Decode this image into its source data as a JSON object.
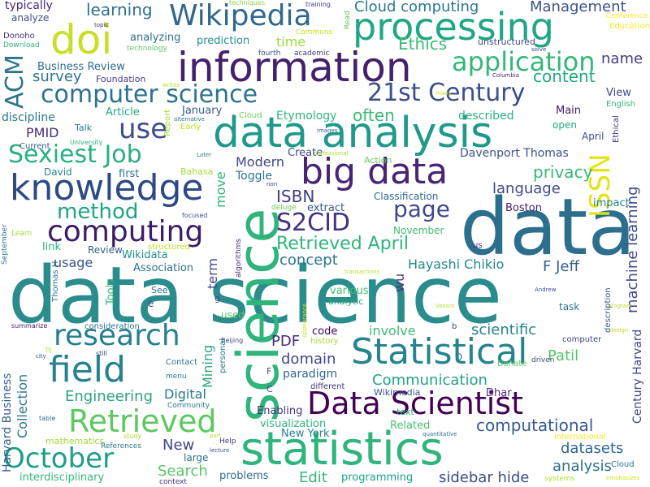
{
  "words": [
    {
      "text": "data science",
      "color": "#2a8c8c",
      "rot": false
    },
    {
      "text": "data",
      "color": "#2c6f8d",
      "rot": false
    },
    {
      "text": "information",
      "color": "#45206b",
      "rot": false
    },
    {
      "text": "data analysis",
      "color": "#1f9a8a",
      "rot": false
    },
    {
      "text": "statistics",
      "color": "#2fb47c",
      "rot": false
    },
    {
      "text": "science",
      "color": "#2fb47c",
      "rot": true
    },
    {
      "text": "processing",
      "color": "#21a685",
      "rot": false
    },
    {
      "text": "big data",
      "color": "#482475",
      "rot": false
    },
    {
      "text": "knowledge",
      "color": "#2e4a85",
      "rot": false
    },
    {
      "text": "Statistical",
      "color": "#25848e",
      "rot": false
    },
    {
      "text": "Data Scientist",
      "color": "#440154",
      "rot": false
    },
    {
      "text": "Wikipedia",
      "color": "#31688e",
      "rot": false
    },
    {
      "text": "computer science",
      "color": "#2c728e",
      "rot": false
    },
    {
      "text": "doi",
      "color": "#c9de26",
      "rot": false
    },
    {
      "text": "research",
      "color": "#27808e",
      "rot": false
    },
    {
      "text": "field",
      "color": "#26828e",
      "rot": false
    },
    {
      "text": "Retrieved",
      "color": "#5ec962",
      "rot": false
    },
    {
      "text": "computing",
      "color": "#3b1c66",
      "rot": false
    },
    {
      "text": "21st Century",
      "color": "#3b4f8a",
      "rot": false
    },
    {
      "text": "application",
      "color": "#35b779",
      "rot": false
    },
    {
      "text": "use",
      "color": "#3e4c8a",
      "rot": false
    },
    {
      "text": "ACM",
      "color": "#2b758e",
      "rot": true
    },
    {
      "text": "Sexiest Job",
      "color": "#2ab07f",
      "rot": false
    },
    {
      "text": "method",
      "color": "#20a486",
      "rot": false
    },
    {
      "text": "October",
      "color": "#1f9e89",
      "rot": false
    },
    {
      "text": "ISSN",
      "color": "#e3e418",
      "rot": true
    },
    {
      "text": "S2CID",
      "color": "#46327e",
      "rot": false
    },
    {
      "text": "page",
      "color": "#3e4989",
      "rot": false
    },
    {
      "text": "Retrieved April",
      "color": "#31b57b",
      "rot": false
    },
    {
      "text": "learning",
      "color": "#2d708e",
      "rot": false
    },
    {
      "text": "Cloud computing",
      "color": "#29798e",
      "rot": false
    },
    {
      "text": "Management",
      "color": "#3b528b",
      "rot": false
    },
    {
      "text": "Ethics",
      "color": "#3bbb75",
      "rot": false
    },
    {
      "text": "content",
      "color": "#22a884",
      "rot": false
    },
    {
      "text": "name",
      "color": "#423f85",
      "rot": false
    },
    {
      "text": "often",
      "color": "#3aba76",
      "rot": false
    },
    {
      "text": "survey",
      "color": "#2a768e",
      "rot": false
    },
    {
      "text": "Business Review",
      "color": "#2f6c8e",
      "rot": false
    },
    {
      "text": "PMID",
      "color": "#472d7b",
      "rot": false
    },
    {
      "text": "ISBN",
      "color": "#433e85",
      "rot": false
    },
    {
      "text": "privacy",
      "color": "#37b878",
      "rot": false
    },
    {
      "text": "language",
      "color": "#3f4889",
      "rot": false
    },
    {
      "text": "Davenport Thomas",
      "color": "#3b528b",
      "rot": false
    },
    {
      "text": "Modern",
      "color": "#404688",
      "rot": false
    },
    {
      "text": "concept",
      "color": "#2c738e",
      "rot": false
    },
    {
      "text": "Hayashi Chikio",
      "color": "#23898e",
      "rot": false
    },
    {
      "text": "F Jeff",
      "color": "#365d8d",
      "rot": false
    },
    {
      "text": "machine learning",
      "color": "#3e4a89",
      "rot": true
    },
    {
      "text": "domain",
      "color": "#3f4788",
      "rot": false
    },
    {
      "text": "PDF",
      "color": "#472c7a",
      "rot": false
    },
    {
      "text": "scientific",
      "color": "#26828e",
      "rot": false
    },
    {
      "text": "involve",
      "color": "#3dbc74",
      "rot": false
    },
    {
      "text": "code",
      "color": "#440154",
      "rot": false
    },
    {
      "text": "paradigm",
      "color": "#31688e",
      "rot": false
    },
    {
      "text": "Communication",
      "color": "#20a386",
      "rot": false
    },
    {
      "text": "Patil",
      "color": "#52c569",
      "rot": false
    },
    {
      "text": "computational",
      "color": "#375a8c",
      "rot": false
    },
    {
      "text": "datasets",
      "color": "#31678e",
      "rot": false
    },
    {
      "text": "analysis",
      "color": "#2e6e8e",
      "rot": false
    },
    {
      "text": "sidebar hide",
      "color": "#3d4e8a",
      "rot": false
    },
    {
      "text": "Engineering",
      "color": "#2da37f",
      "rot": false
    },
    {
      "text": "Digital",
      "color": "#287c8e",
      "rot": false
    },
    {
      "text": "Search",
      "color": "#56c667",
      "rot": false
    },
    {
      "text": "New",
      "color": "#404588",
      "rot": false
    },
    {
      "text": "Edit",
      "color": "#34b679",
      "rot": false
    },
    {
      "text": "programming",
      "color": "#1fa088",
      "rot": false
    },
    {
      "text": "problems",
      "color": "#2e6d8e",
      "rot": false
    },
    {
      "text": "interdisciplinary",
      "color": "#35b779",
      "rot": false
    },
    {
      "text": "New York",
      "color": "#26828e",
      "rot": false
    },
    {
      "text": "visualization",
      "color": "#2fb47c",
      "rot": false
    },
    {
      "text": "Related",
      "color": "#4ac16d",
      "rot": false
    },
    {
      "text": "Enabling",
      "color": "#46337e",
      "rot": false
    },
    {
      "text": "Dhar",
      "color": "#46307e",
      "rot": false
    },
    {
      "text": "Wikimedia",
      "color": "#3b528b",
      "rot": false
    },
    {
      "text": "Collection",
      "color": "#2c728e",
      "rot": true
    },
    {
      "text": "Harvard Business",
      "color": "#35608d",
      "rot": true
    },
    {
      "text": "term",
      "color": "#3e4989",
      "rot": true
    },
    {
      "text": "Mining",
      "color": "#2da47f",
      "rot": true
    },
    {
      "text": "move",
      "color": "#2fb47c",
      "rot": true
    },
    {
      "text": "wu",
      "color": "#44397f",
      "rot": true
    },
    {
      "text": "Century Harvard",
      "color": "#414487",
      "rot": true
    },
    {
      "text": "Boston",
      "color": "#481b6d",
      "rot": false
    },
    {
      "text": "impact",
      "color": "#26828e",
      "rot": false
    },
    {
      "text": "November",
      "color": "#40bd72",
      "rot": false
    },
    {
      "text": "Classification",
      "color": "#2f6b8e",
      "rot": false
    },
    {
      "text": "Toggle",
      "color": "#2a778e",
      "rot": false
    },
    {
      "text": "Create",
      "color": "#3e4a89",
      "rot": false
    },
    {
      "text": "extract",
      "color": "#38598c",
      "rot": false
    },
    {
      "text": "usage",
      "color": "#3a548c",
      "rot": false
    },
    {
      "text": "Wikidata",
      "color": "#21918c",
      "rot": false
    },
    {
      "text": "Association",
      "color": "#2c728e",
      "rot": false
    },
    {
      "text": "Review",
      "color": "#35608d",
      "rot": false
    },
    {
      "text": "link",
      "color": "#29af7f",
      "rot": false
    },
    {
      "text": "Learn",
      "color": "#a2da37",
      "rot": false
    },
    {
      "text": "first",
      "color": "#2a778e",
      "rot": false
    },
    {
      "text": "David",
      "color": "#25858e",
      "rot": false
    },
    {
      "text": "Current",
      "color": "#365d8d",
      "rot": false
    },
    {
      "text": "discipline",
      "color": "#2a778e",
      "rot": false
    },
    {
      "text": "Talk",
      "color": "#2a778e",
      "rot": false
    },
    {
      "text": "Article",
      "color": "#22a884",
      "rot": false
    },
    {
      "text": "January",
      "color": "#38588c",
      "rot": false
    },
    {
      "text": "Etymology",
      "color": "#32b67a",
      "rot": false
    },
    {
      "text": "described",
      "color": "#2ab07f",
      "rot": false
    },
    {
      "text": "time",
      "color": "#a0da39",
      "rot": false
    },
    {
      "text": "Main",
      "color": "#3b1c66",
      "rot": false
    },
    {
      "text": "View",
      "color": "#3e4a89",
      "rot": false
    },
    {
      "text": "open",
      "color": "#22a884",
      "rot": false
    },
    {
      "text": "April",
      "color": "#3f4889",
      "rot": false
    },
    {
      "text": "English",
      "color": "#37b878",
      "rot": false
    },
    {
      "text": "Conference",
      "color": "#fde725",
      "rot": false
    },
    {
      "text": "Education",
      "color": "#fde725",
      "rot": false
    },
    {
      "text": "analyzing",
      "color": "#2d718e",
      "rot": false
    },
    {
      "text": "prediction",
      "color": "#21918c",
      "rot": false
    },
    {
      "text": "Foundation",
      "color": "#433e85",
      "rot": false
    },
    {
      "text": "typically",
      "color": "#482878",
      "rot": false
    },
    {
      "text": "analyze",
      "color": "#3b518b",
      "rot": false
    },
    {
      "text": "Donoho",
      "color": "#46327e",
      "rot": false
    },
    {
      "text": "Download",
      "color": "#32b67a",
      "rot": false
    },
    {
      "text": "academic",
      "color": "#44397f",
      "rot": false
    },
    {
      "text": "fourth",
      "color": "#3a548c",
      "rot": false
    },
    {
      "text": "Commons",
      "color": "#c8e020",
      "rot": false
    },
    {
      "text": "unstructured",
      "color": "#3e4a89",
      "rot": false
    },
    {
      "text": "technology",
      "color": "#5ec962",
      "rot": false
    },
    {
      "text": "topic",
      "color": "#46327e",
      "rot": false
    },
    {
      "text": "techniques",
      "color": "#8bd646",
      "rot": false
    },
    {
      "text": "training",
      "color": "#453882",
      "rot": false
    },
    {
      "text": "Columbia",
      "color": "#482173",
      "rot": false
    },
    {
      "text": "solve",
      "color": "#3f4889",
      "rot": false
    },
    {
      "text": "Read",
      "color": "#5ec962",
      "rot": true
    },
    {
      "text": "alternative",
      "color": "#2c728e",
      "rot": false
    },
    {
      "text": "Cloud",
      "color": "#6ece58",
      "rot": false
    },
    {
      "text": "images",
      "color": "#355f8d",
      "rot": false
    },
    {
      "text": "professional",
      "color": "#b5de2b",
      "rot": false
    },
    {
      "text": "Action",
      "color": "#6ece58",
      "rot": false
    },
    {
      "text": "Bahasa",
      "color": "#a5db36",
      "rot": false
    },
    {
      "text": "Later",
      "color": "#2a788e",
      "rot": false
    },
    {
      "text": "Early",
      "color": "#c8e020",
      "rot": false
    },
    {
      "text": "writes",
      "color": "#c8e020",
      "rot": false
    },
    {
      "text": "University",
      "color": "#2ab07f",
      "rot": false
    },
    {
      "text": "Report",
      "color": "#a8db34",
      "rot": true
    },
    {
      "text": "many",
      "color": "#d5e21a",
      "rot": false
    },
    {
      "text": "Ethical",
      "color": "#46337e",
      "rot": true
    },
    {
      "text": "non",
      "color": "#3e4a89",
      "rot": false
    },
    {
      "text": "deluge",
      "color": "#6ece58",
      "rot": false
    },
    {
      "text": "focused",
      "color": "#3b528b",
      "rot": false
    },
    {
      "text": "structured",
      "color": "#c2df23",
      "rot": false
    },
    {
      "text": "September",
      "color": "#2a788e",
      "rot": true
    },
    {
      "text": "algorithms",
      "color": "#482878",
      "rot": true
    },
    {
      "text": "transactions",
      "color": "#b8de29",
      "rot": false
    },
    {
      "text": "us",
      "color": "#46327e",
      "rot": false
    },
    {
      "text": "Thomas H",
      "color": "#2c728e",
      "rot": true
    },
    {
      "text": "Tools",
      "color": "#32b67a",
      "rot": true
    },
    {
      "text": "See",
      "color": "#2d708e",
      "rot": false
    },
    {
      "text": "e",
      "color": "#3e4989",
      "rot": false
    },
    {
      "text": "g",
      "color": "#3e4989",
      "rot": false
    },
    {
      "text": "summarize",
      "color": "#482173",
      "rot": false
    },
    {
      "text": "consideration",
      "color": "#2c728e",
      "rot": false
    },
    {
      "text": "DJ",
      "color": "#b5de2b",
      "rot": false
    },
    {
      "text": "still",
      "color": "#433e85",
      "rot": false
    },
    {
      "text": "Beijing",
      "color": "#404688",
      "rot": false
    },
    {
      "text": "history",
      "color": "#a5db36",
      "rot": false
    },
    {
      "text": "Appearance",
      "color": "#d5e21a",
      "rot": true
    },
    {
      "text": "various",
      "color": "#3dbc74",
      "rot": false
    },
    {
      "text": "analytic",
      "color": "#2da37f",
      "rot": false
    },
    {
      "text": "used",
      "color": "#56c667",
      "rot": false
    },
    {
      "text": "Vasant",
      "color": "#b0dd2f",
      "rot": false
    },
    {
      "text": "Andrew",
      "color": "#3e4a89",
      "rot": false
    },
    {
      "text": "task",
      "color": "#2d718e",
      "rot": false
    },
    {
      "text": "program",
      "color": "#b0dd2f",
      "rot": false
    },
    {
      "text": "design",
      "color": "#c2df23",
      "rot": false
    },
    {
      "text": "computer",
      "color": "#3f4889",
      "rot": false
    },
    {
      "text": "description",
      "color": "#38598c",
      "rot": true
    },
    {
      "text": "b",
      "color": "#404688",
      "rot": false
    },
    {
      "text": "D",
      "color": "#2a788e",
      "rot": false
    },
    {
      "text": "Donate",
      "color": "#5ec962",
      "rot": false
    },
    {
      "text": "driven",
      "color": "#3b528b",
      "rot": false
    },
    {
      "text": "different",
      "color": "#46327e",
      "rot": false
    },
    {
      "text": "Contact",
      "color": "#2c728e",
      "rot": false
    },
    {
      "text": "menu",
      "color": "#2a788e",
      "rot": false
    },
    {
      "text": "personal",
      "color": "#2a778e",
      "rot": true
    },
    {
      "text": "C",
      "color": "#404688",
      "rot": false
    },
    {
      "text": "F",
      "color": "#404688",
      "rot": false
    },
    {
      "text": "city",
      "color": "#3b528b",
      "rot": false
    },
    {
      "text": "Community",
      "color": "#2a788e",
      "rot": false
    },
    {
      "text": "table",
      "color": "#2c728e",
      "rot": false
    },
    {
      "text": "mathematics",
      "color": "#a0da39",
      "rot": false
    },
    {
      "text": "study",
      "color": "#b0dd2f",
      "rot": false
    },
    {
      "text": "References",
      "color": "#2a778e",
      "rot": false
    },
    {
      "text": "large",
      "color": "#2e6e8e",
      "rot": false
    },
    {
      "text": "Help",
      "color": "#46327e",
      "rot": false
    },
    {
      "text": "part",
      "color": "#b5de2b",
      "rot": false
    },
    {
      "text": "lecture",
      "color": "#3b528b",
      "rot": false
    },
    {
      "text": "text",
      "color": "#2ab07f",
      "rot": false
    },
    {
      "text": "quantitative",
      "color": "#2c728e",
      "rot": false
    },
    {
      "text": "International",
      "color": "#fde725",
      "rot": false
    },
    {
      "text": "Cloud",
      "color": "#2c728e",
      "rot": false
    },
    {
      "text": "systems",
      "color": "#b5de2b",
      "rot": false
    },
    {
      "text": "emphasizes",
      "color": "#d5e21a",
      "rot": false
    },
    {
      "text": "context",
      "color": "#46327e",
      "rot": false
    }
  ]
}
